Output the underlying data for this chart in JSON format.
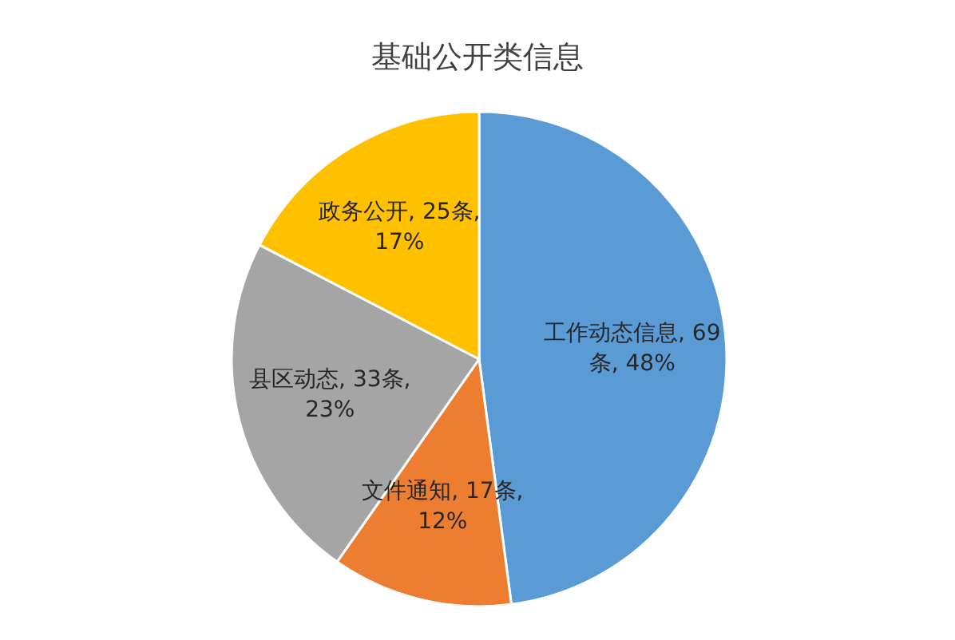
{
  "chart_data": {
    "type": "pie",
    "title": "基础公开类信息",
    "categories": [
      "工作动态信息",
      "文件通知",
      "县区动态",
      "政务公开"
    ],
    "values": [
      69,
      17,
      33,
      25
    ],
    "colors": [
      "#5b9bd5",
      "#ed7d31",
      "#a5a5a5",
      "#ffc000"
    ],
    "value_labels": [
      "69条, 48%",
      "17条, 12%",
      "33条, 23%",
      "25条, 17%"
    ]
  }
}
